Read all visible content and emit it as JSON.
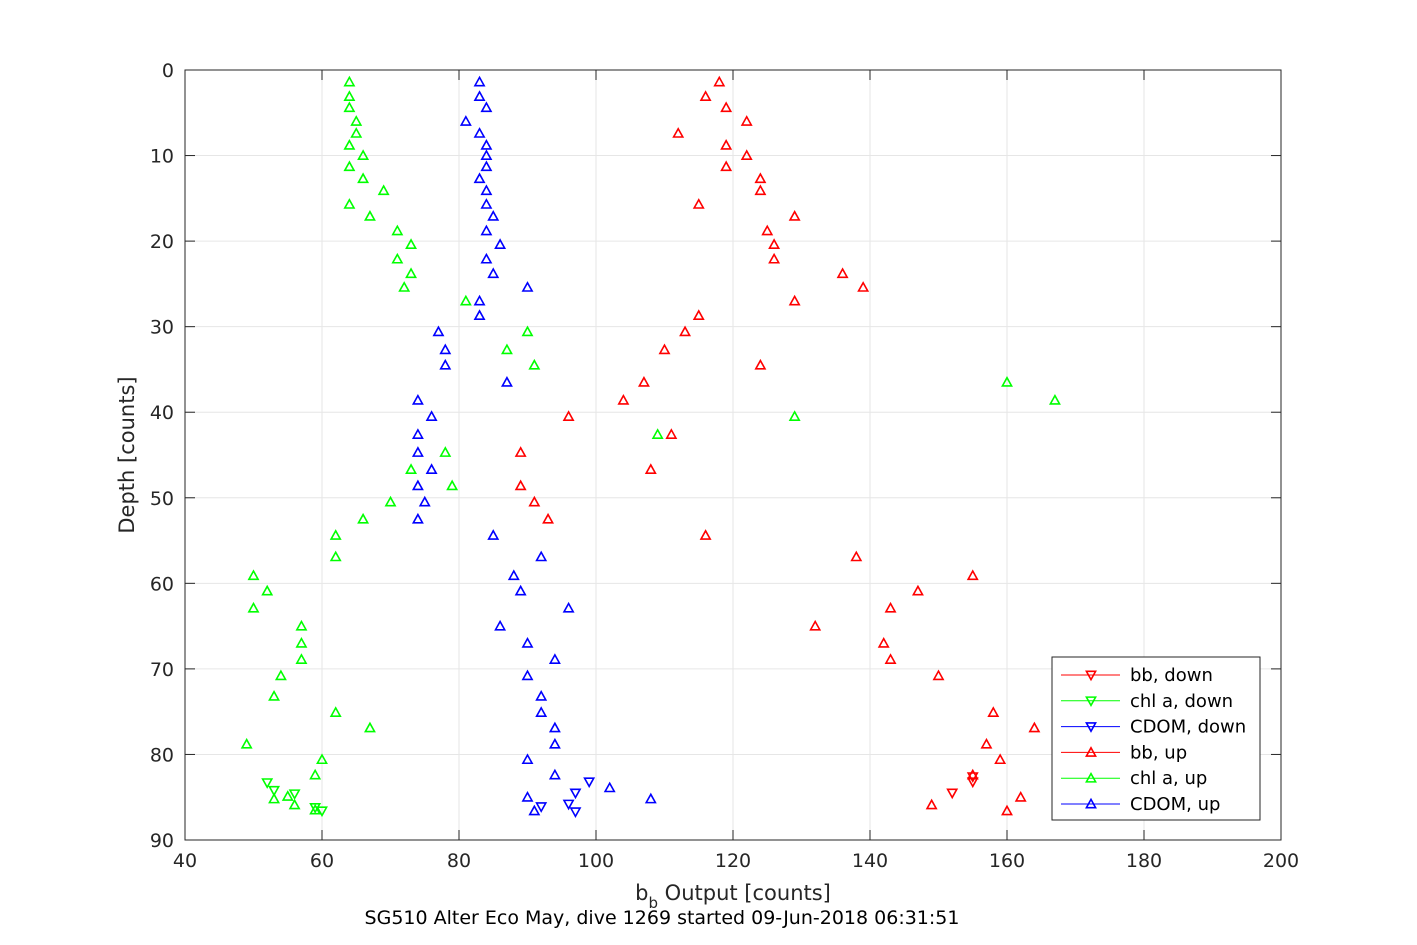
{
  "chart_data": {
    "type": "scatter",
    "xlabel_main": "b",
    "xlabel_sub": "b",
    "xlabel_rest": " Output [counts]",
    "ylabel": "Depth [counts]",
    "caption": "SG510 Alter Eco May, dive 1269 started 09-Jun-2018 06:31:51",
    "xlim": [
      40,
      200
    ],
    "ylim": [
      0,
      90
    ],
    "y_reversed": true,
    "x_ticks": [
      40,
      60,
      80,
      100,
      120,
      140,
      160,
      180,
      200
    ],
    "y_ticks": [
      0,
      10,
      20,
      30,
      40,
      50,
      60,
      70,
      80,
      90
    ],
    "grid": true,
    "legend_position": "bottom-right",
    "series": [
      {
        "name": "bb, down",
        "marker": "triangle-down",
        "color": "#ff0000",
        "points": [
          [
            152,
            84.5
          ],
          [
            155,
            83.2
          ],
          [
            155,
            82.6
          ]
        ]
      },
      {
        "name": "chl a, down",
        "marker": "triangle-down",
        "color": "#00ff00",
        "points": [
          [
            52,
            83.3
          ],
          [
            53,
            84.2
          ],
          [
            56,
            84.6
          ],
          [
            59,
            86.2
          ],
          [
            60,
            86.6
          ]
        ]
      },
      {
        "name": "CDOM, down",
        "marker": "triangle-down",
        "color": "#0000ff",
        "points": [
          [
            92,
            86.1
          ],
          [
            99,
            83.2
          ],
          [
            97,
            84.5
          ],
          [
            96,
            85.8
          ],
          [
            97,
            86.7
          ]
        ]
      },
      {
        "name": "bb, up",
        "marker": "triangle-up",
        "color": "#ff0000",
        "points": [
          [
            118,
            1.4
          ],
          [
            116,
            3.1
          ],
          [
            119,
            4.4
          ],
          [
            122,
            6.0
          ],
          [
            112,
            7.4
          ],
          [
            119,
            8.8
          ],
          [
            122,
            10.0
          ],
          [
            119,
            11.3
          ],
          [
            124,
            12.7
          ],
          [
            124,
            14.1
          ],
          [
            115,
            15.7
          ],
          [
            129,
            17.1
          ],
          [
            125,
            18.8
          ],
          [
            126,
            20.4
          ],
          [
            126,
            22.1
          ],
          [
            136,
            23.8
          ],
          [
            139,
            25.4
          ],
          [
            129,
            27.0
          ],
          [
            115,
            28.7
          ],
          [
            113,
            30.6
          ],
          [
            110,
            32.7
          ],
          [
            124,
            34.5
          ],
          [
            107,
            36.5
          ],
          [
            104,
            38.6
          ],
          [
            96,
            40.5
          ],
          [
            111,
            42.6
          ],
          [
            89,
            44.7
          ],
          [
            108,
            46.7
          ],
          [
            89,
            48.6
          ],
          [
            91,
            50.5
          ],
          [
            93,
            52.5
          ],
          [
            116,
            54.4
          ],
          [
            138,
            56.9
          ],
          [
            155,
            59.1
          ],
          [
            147,
            60.9
          ],
          [
            143,
            62.9
          ],
          [
            132,
            65.0
          ],
          [
            142,
            67.0
          ],
          [
            143,
            68.9
          ],
          [
            150,
            70.8
          ],
          [
            158,
            75.1
          ],
          [
            164,
            76.9
          ],
          [
            157,
            78.8
          ],
          [
            159,
            80.6
          ],
          [
            155,
            82.4
          ],
          [
            162,
            85.0
          ],
          [
            149,
            85.9
          ],
          [
            160,
            86.6
          ]
        ]
      },
      {
        "name": "chl a, up",
        "marker": "triangle-up",
        "color": "#00ff00",
        "points": [
          [
            64,
            1.4
          ],
          [
            64,
            3.1
          ],
          [
            64,
            4.4
          ],
          [
            65,
            6.0
          ],
          [
            65,
            7.4
          ],
          [
            64,
            8.8
          ],
          [
            66,
            10.0
          ],
          [
            64,
            11.3
          ],
          [
            66,
            12.7
          ],
          [
            69,
            14.1
          ],
          [
            64,
            15.7
          ],
          [
            67,
            17.1
          ],
          [
            71,
            18.8
          ],
          [
            73,
            20.4
          ],
          [
            71,
            22.1
          ],
          [
            73,
            23.8
          ],
          [
            72,
            25.4
          ],
          [
            81,
            27.0
          ],
          [
            90,
            30.6
          ],
          [
            87,
            32.7
          ],
          [
            91,
            34.5
          ],
          [
            160,
            36.5
          ],
          [
            167,
            38.6
          ],
          [
            129,
            40.5
          ],
          [
            109,
            42.6
          ],
          [
            78,
            44.7
          ],
          [
            73,
            46.7
          ],
          [
            79,
            48.6
          ],
          [
            70,
            50.5
          ],
          [
            66,
            52.5
          ],
          [
            62,
            54.4
          ],
          [
            62,
            56.9
          ],
          [
            50,
            59.1
          ],
          [
            52,
            60.9
          ],
          [
            50,
            62.9
          ],
          [
            57,
            65.0
          ],
          [
            57,
            67.0
          ],
          [
            57,
            68.9
          ],
          [
            54,
            70.8
          ],
          [
            53,
            73.2
          ],
          [
            62,
            75.1
          ],
          [
            67,
            76.9
          ],
          [
            49,
            78.8
          ],
          [
            60,
            80.6
          ],
          [
            59,
            82.4
          ],
          [
            53,
            85.2
          ],
          [
            55,
            84.9
          ],
          [
            56,
            85.9
          ],
          [
            59,
            86.5
          ]
        ]
      },
      {
        "name": "CDOM, up",
        "marker": "triangle-up",
        "color": "#0000ff",
        "points": [
          [
            83,
            1.4
          ],
          [
            83,
            3.1
          ],
          [
            84,
            4.4
          ],
          [
            81,
            6.0
          ],
          [
            83,
            7.4
          ],
          [
            84,
            8.8
          ],
          [
            84,
            10.0
          ],
          [
            84,
            11.3
          ],
          [
            83,
            12.7
          ],
          [
            84,
            14.1
          ],
          [
            84,
            15.7
          ],
          [
            85,
            17.1
          ],
          [
            84,
            18.8
          ],
          [
            86,
            20.4
          ],
          [
            84,
            22.1
          ],
          [
            85,
            23.8
          ],
          [
            90,
            25.4
          ],
          [
            83,
            27.0
          ],
          [
            83,
            28.7
          ],
          [
            77,
            30.6
          ],
          [
            78,
            32.7
          ],
          [
            78,
            34.5
          ],
          [
            87,
            36.5
          ],
          [
            74,
            38.6
          ],
          [
            76,
            40.5
          ],
          [
            74,
            42.6
          ],
          [
            74,
            44.7
          ],
          [
            76,
            46.7
          ],
          [
            74,
            48.6
          ],
          [
            75,
            50.5
          ],
          [
            74,
            52.5
          ],
          [
            85,
            54.4
          ],
          [
            92,
            56.9
          ],
          [
            88,
            59.1
          ],
          [
            89,
            60.9
          ],
          [
            96,
            62.9
          ],
          [
            86,
            65.0
          ],
          [
            90,
            67.0
          ],
          [
            94,
            68.9
          ],
          [
            90,
            70.8
          ],
          [
            92,
            73.2
          ],
          [
            92,
            75.1
          ],
          [
            94,
            76.9
          ],
          [
            94,
            78.8
          ],
          [
            90,
            80.6
          ],
          [
            94,
            82.4
          ],
          [
            102,
            83.9
          ],
          [
            108,
            85.2
          ],
          [
            90,
            85.0
          ],
          [
            91,
            86.6
          ]
        ]
      }
    ]
  }
}
